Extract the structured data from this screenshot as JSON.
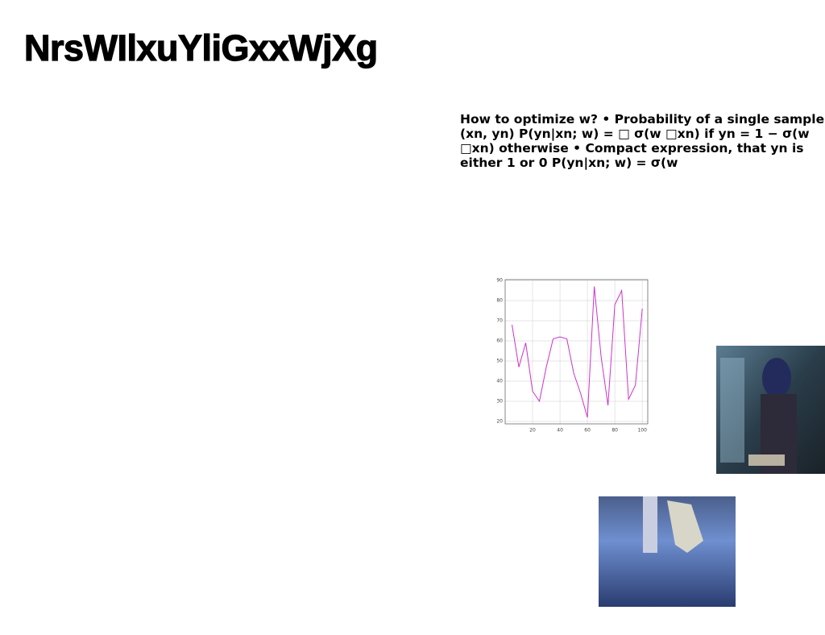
{
  "title": "NrsWIlxuYliGxxWjXg",
  "body": "How to optimize w? • Probability of a single sample (xn, yn) P(yn|xn; w) = □ σ(w □xn) if yn = 1 − σ(w □xn) otherwise • Compact expression, that yn is either 1 or 0 P(yn|xn; w) = σ(w",
  "chart": {
    "type": "line",
    "color": "#cc33cc",
    "grid": true,
    "x": [
      5,
      10,
      15,
      20,
      25,
      30,
      35,
      40,
      45,
      50,
      55,
      60,
      65,
      70,
      75,
      80,
      85,
      90,
      95,
      100
    ],
    "values": [
      68,
      47,
      59,
      35,
      30,
      47,
      61,
      62,
      61,
      44,
      34,
      22,
      87,
      52,
      28,
      78,
      85,
      31,
      38,
      76
    ],
    "xlim": [
      0,
      104
    ],
    "ylim": [
      18.8,
      90.4
    ],
    "xticks": [
      20,
      40,
      60,
      80,
      100
    ],
    "yticks": [
      20,
      30,
      40,
      50,
      60,
      70,
      80,
      90
    ]
  }
}
